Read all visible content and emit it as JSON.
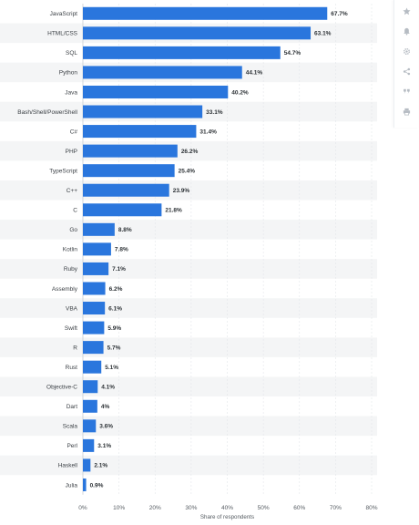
{
  "chart_data": {
    "type": "bar",
    "orientation": "horizontal",
    "categories": [
      "JavaScript",
      "HTML/CSS",
      "SQL",
      "Python",
      "Java",
      "Bash/Shell/PowerShell",
      "C#",
      "PHP",
      "TypeScript",
      "C++",
      "C",
      "Go",
      "Kotlin",
      "Ruby",
      "Assembly",
      "VBA",
      "Swift",
      "R",
      "Rust",
      "Objective-C",
      "Dart",
      "Scala",
      "Perl",
      "Haskell",
      "Julia"
    ],
    "values": [
      67.7,
      63.1,
      54.7,
      44.1,
      40.2,
      33.1,
      31.4,
      26.2,
      25.4,
      23.9,
      21.8,
      8.8,
      7.8,
      7.1,
      6.2,
      6.1,
      5.9,
      5.7,
      5.1,
      4.1,
      4,
      3.6,
      3.1,
      2.1,
      0.9
    ],
    "value_labels": [
      "67.7%",
      "63.1%",
      "54.7%",
      "44.1%",
      "40.2%",
      "33.1%",
      "31.4%",
      "26.2%",
      "25.4%",
      "23.9%",
      "21.8%",
      "8.8%",
      "7.8%",
      "7.1%",
      "6.2%",
      "6.1%",
      "5.9%",
      "5.7%",
      "5.1%",
      "4.1%",
      "4%",
      "3.6%",
      "3.1%",
      "2.1%",
      "0.9%"
    ],
    "xticks": [
      "0%",
      "10%",
      "20%",
      "30%",
      "40%",
      "50%",
      "60%",
      "70%",
      "80%"
    ],
    "xlim": [
      0,
      80
    ],
    "xlabel": "Share of respondents",
    "ylabel": "",
    "title": "",
    "grid": "vertical",
    "row_banding": true,
    "bar_color": "#2a76dd",
    "band_color": "#f4f5f6"
  },
  "toolbar": {
    "icons": [
      "star-icon",
      "bell-icon",
      "settings-icon",
      "share-icon",
      "quote-icon",
      "print-icon"
    ]
  }
}
